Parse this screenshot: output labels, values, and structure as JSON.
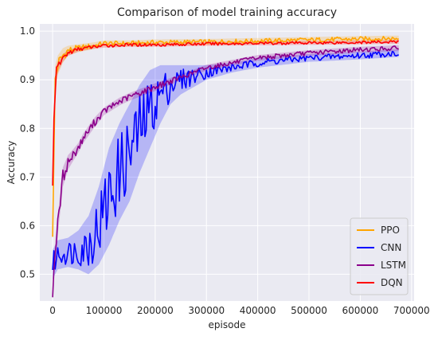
{
  "chart_data": {
    "type": "line",
    "title": "Comparison of model training accuracy",
    "xlabel": "episode",
    "ylabel": "Accuracy",
    "xlim": [
      -25000,
      705000
    ],
    "ylim": [
      0.445,
      1.015
    ],
    "x_ticks": [
      0,
      100000,
      200000,
      300000,
      400000,
      500000,
      600000,
      700000
    ],
    "x_tick_labels": [
      "0",
      "100000",
      "200000",
      "300000",
      "400000",
      "500000",
      "600000",
      "700000"
    ],
    "y_ticks": [
      0.5,
      0.6,
      0.7,
      0.8,
      0.9,
      1.0
    ],
    "y_tick_labels": [
      "0.5",
      "0.6",
      "0.7",
      "0.8",
      "0.9",
      "1.0"
    ],
    "grid": true,
    "legend_position": "bottom-right",
    "series": [
      {
        "name": "PPO",
        "color": "#FFA500",
        "x": [
          0,
          5000,
          10000,
          20000,
          30000,
          50000,
          80000,
          100000,
          150000,
          200000,
          300000,
          400000,
          500000,
          600000,
          675000
        ],
        "y": [
          0.58,
          0.9,
          0.93,
          0.95,
          0.96,
          0.965,
          0.97,
          0.975,
          0.975,
          0.977,
          0.978,
          0.98,
          0.982,
          0.984,
          0.985
        ],
        "band": [
          0.006,
          0.03,
          0.02,
          0.015,
          0.01,
          0.008,
          0.007,
          0.006,
          0.006,
          0.006,
          0.006,
          0.006,
          0.006,
          0.006,
          0.006
        ]
      },
      {
        "name": "CNN",
        "color": "#0000FF",
        "x": [
          0,
          10000,
          30000,
          50000,
          70000,
          90000,
          110000,
          130000,
          150000,
          170000,
          190000,
          210000,
          230000,
          250000,
          300000,
          350000,
          400000,
          500000,
          600000,
          675000
        ],
        "y": [
          0.52,
          0.54,
          0.545,
          0.55,
          0.56,
          0.6,
          0.66,
          0.71,
          0.75,
          0.8,
          0.84,
          0.87,
          0.89,
          0.9,
          0.915,
          0.925,
          0.935,
          0.945,
          0.95,
          0.955
        ],
        "band": [
          0.03,
          0.03,
          0.03,
          0.04,
          0.06,
          0.08,
          0.1,
          0.1,
          0.1,
          0.09,
          0.08,
          0.06,
          0.04,
          0.03,
          0.015,
          0.01,
          0.01,
          0.008,
          0.008,
          0.008
        ]
      },
      {
        "name": "LSTM",
        "color": "#8B008B",
        "x": [
          0,
          5000,
          10000,
          15000,
          20000,
          30000,
          40000,
          50000,
          60000,
          80000,
          100000,
          130000,
          150000,
          200000,
          250000,
          300000,
          350000,
          400000,
          500000,
          600000,
          675000
        ],
        "y": [
          0.46,
          0.55,
          0.6,
          0.65,
          0.7,
          0.73,
          0.745,
          0.76,
          0.78,
          0.81,
          0.835,
          0.855,
          0.865,
          0.885,
          0.905,
          0.925,
          0.935,
          0.945,
          0.955,
          0.962,
          0.965
        ],
        "band": [
          0.01,
          0.02,
          0.02,
          0.02,
          0.02,
          0.015,
          0.012,
          0.01,
          0.01,
          0.01,
          0.008,
          0.008,
          0.008,
          0.008,
          0.006,
          0.006,
          0.006,
          0.006,
          0.006,
          0.006,
          0.006
        ]
      },
      {
        "name": "DQN",
        "color": "#FF0000",
        "x": [
          0,
          2000,
          5000,
          8000,
          12000,
          20000,
          30000,
          50000,
          80000,
          100000,
          150000,
          200000,
          300000,
          400000,
          500000,
          600000,
          675000
        ],
        "y": [
          0.68,
          0.82,
          0.88,
          0.92,
          0.93,
          0.945,
          0.955,
          0.963,
          0.968,
          0.97,
          0.972,
          0.972,
          0.974,
          0.975,
          0.976,
          0.977,
          0.978
        ],
        "band": [
          0.01,
          0.02,
          0.02,
          0.015,
          0.01,
          0.008,
          0.006,
          0.005,
          0.004,
          0.004,
          0.004,
          0.004,
          0.004,
          0.004,
          0.004,
          0.004,
          0.004
        ]
      }
    ]
  }
}
